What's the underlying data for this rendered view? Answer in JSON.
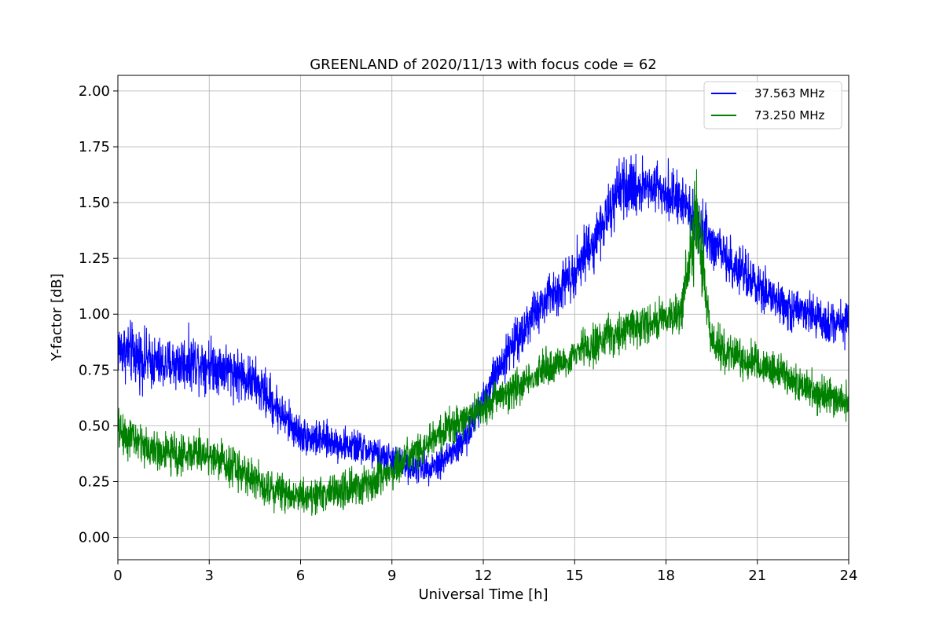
{
  "chart_data": {
    "type": "line",
    "title": "GREENLAND of 2020/11/13 with focus code = 62",
    "xlabel": "Universal Time [h]",
    "ylabel": "Y-factor [dB]",
    "xlim": [
      0,
      24
    ],
    "ylim": [
      -0.1,
      2.07
    ],
    "xticks": [
      0,
      3,
      6,
      9,
      12,
      15,
      18,
      21,
      24
    ],
    "yticks": [
      0.0,
      0.25,
      0.5,
      0.75,
      1.0,
      1.25,
      1.5,
      1.75,
      2.0
    ],
    "grid": true,
    "legend_position": "top-right",
    "series": [
      {
        "name": "37.563 MHz",
        "color": "#0000ff",
        "x": [
          0,
          0.5,
          1,
          1.5,
          2,
          2.5,
          3,
          3.5,
          4,
          4.5,
          5,
          5.5,
          6,
          6.5,
          7,
          7.5,
          8,
          8.5,
          9,
          9.5,
          10,
          10.5,
          11,
          11.5,
          12,
          12.5,
          13,
          13.5,
          14,
          14.5,
          15,
          15.5,
          16,
          16.5,
          17,
          17.5,
          18,
          18.5,
          19,
          19.5,
          20,
          20.5,
          21,
          21.5,
          22,
          22.5,
          23,
          23.5,
          24
        ],
        "center": [
          0.85,
          0.82,
          0.79,
          0.77,
          0.78,
          0.79,
          0.78,
          0.76,
          0.73,
          0.69,
          0.62,
          0.53,
          0.46,
          0.44,
          0.43,
          0.41,
          0.4,
          0.37,
          0.35,
          0.32,
          0.31,
          0.33,
          0.38,
          0.46,
          0.62,
          0.76,
          0.87,
          0.97,
          1.05,
          1.12,
          1.2,
          1.3,
          1.42,
          1.55,
          1.57,
          1.58,
          1.56,
          1.5,
          1.42,
          1.33,
          1.25,
          1.18,
          1.12,
          1.07,
          1.03,
          1.0,
          0.98,
          0.96,
          0.97
        ],
        "spread": [
          0.18,
          0.2,
          0.18,
          0.17,
          0.18,
          0.18,
          0.17,
          0.17,
          0.17,
          0.16,
          0.16,
          0.14,
          0.12,
          0.12,
          0.11,
          0.11,
          0.11,
          0.1,
          0.1,
          0.1,
          0.1,
          0.1,
          0.12,
          0.12,
          0.13,
          0.13,
          0.14,
          0.15,
          0.15,
          0.16,
          0.17,
          0.18,
          0.17,
          0.2,
          0.18,
          0.18,
          0.16,
          0.16,
          0.17,
          0.16,
          0.15,
          0.15,
          0.15,
          0.14,
          0.14,
          0.14,
          0.14,
          0.14,
          0.14
        ]
      },
      {
        "name": "73.250 MHz",
        "color": "#008000",
        "x": [
          0,
          0.5,
          1,
          1.5,
          2,
          2.5,
          3,
          3.5,
          4,
          4.5,
          5,
          5.5,
          6,
          6.5,
          7,
          7.5,
          8,
          8.5,
          9,
          9.5,
          10,
          10.5,
          11,
          11.5,
          12,
          12.5,
          13,
          13.5,
          14,
          14.5,
          15,
          15.5,
          16,
          16.5,
          17,
          17.5,
          18,
          18.5,
          19,
          19.5,
          20,
          20.5,
          21,
          21.5,
          22,
          22.5,
          23,
          23.5,
          24
        ],
        "center": [
          0.48,
          0.44,
          0.4,
          0.38,
          0.37,
          0.38,
          0.37,
          0.34,
          0.3,
          0.26,
          0.22,
          0.2,
          0.19,
          0.19,
          0.2,
          0.21,
          0.23,
          0.26,
          0.3,
          0.35,
          0.4,
          0.45,
          0.5,
          0.54,
          0.58,
          0.63,
          0.67,
          0.71,
          0.75,
          0.78,
          0.82,
          0.86,
          0.89,
          0.92,
          0.95,
          0.97,
          0.98,
          1.0,
          1.45,
          0.88,
          0.83,
          0.8,
          0.78,
          0.75,
          0.72,
          0.68,
          0.65,
          0.62,
          0.62
        ],
        "spread": [
          0.14,
          0.14,
          0.13,
          0.13,
          0.13,
          0.13,
          0.13,
          0.13,
          0.13,
          0.12,
          0.12,
          0.12,
          0.12,
          0.12,
          0.12,
          0.12,
          0.12,
          0.12,
          0.12,
          0.12,
          0.12,
          0.12,
          0.12,
          0.12,
          0.12,
          0.12,
          0.12,
          0.12,
          0.12,
          0.12,
          0.12,
          0.13,
          0.13,
          0.13,
          0.13,
          0.13,
          0.13,
          0.15,
          0.3,
          0.15,
          0.13,
          0.13,
          0.13,
          0.13,
          0.13,
          0.13,
          0.13,
          0.13,
          0.13
        ]
      }
    ]
  }
}
